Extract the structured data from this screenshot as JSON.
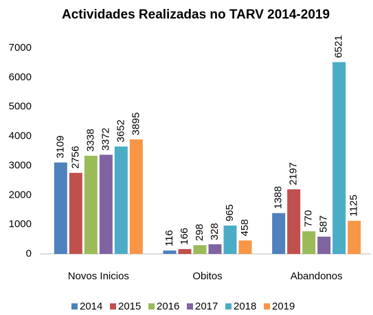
{
  "chart_data": {
    "type": "bar",
    "title": "Actividades Realizadas no TARV 2014-2019",
    "categories": [
      "Novos Inicios",
      "Obitos",
      "Abandonos"
    ],
    "series": [
      {
        "name": "2014",
        "color": "#4f81bd",
        "values": [
          3109,
          116,
          1388
        ]
      },
      {
        "name": "2015",
        "color": "#c0504d",
        "values": [
          2756,
          166,
          2197
        ]
      },
      {
        "name": "2016",
        "color": "#9bbb59",
        "values": [
          3338,
          298,
          770
        ]
      },
      {
        "name": "2017",
        "color": "#8064a2",
        "values": [
          3372,
          328,
          587
        ]
      },
      {
        "name": "2018",
        "color": "#4bacc6",
        "values": [
          3652,
          965,
          6521
        ]
      },
      {
        "name": "2019",
        "color": "#f79646",
        "values": [
          3895,
          458,
          1125
        ]
      }
    ],
    "ylim": [
      0,
      7000
    ],
    "yticks": [
      0,
      1000,
      2000,
      3000,
      4000,
      5000,
      6000,
      7000
    ],
    "grid": false,
    "legend": "bottom"
  }
}
